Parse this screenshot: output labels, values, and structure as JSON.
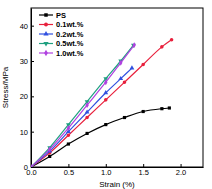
{
  "chart_data": {
    "type": "line",
    "x_label": "Strain (%)",
    "y_label": "Stress/MPa",
    "xlim": [
      0,
      2.3
    ],
    "xticks": [
      {
        "value": 0,
        "label": "0.0"
      },
      {
        "value": 0.5,
        "label": "0.5"
      },
      {
        "value": 1,
        "label": "1.0"
      },
      {
        "value": 1.5,
        "label": "1.5"
      },
      {
        "value": 2,
        "label": "2.0"
      }
    ],
    "ylim": [
      0,
      45
    ],
    "yticks": [
      0,
      10,
      20,
      30,
      40
    ],
    "legend": "top-left",
    "grid": false,
    "series": [
      {
        "name": "PS",
        "color": "#000000",
        "marker": "square",
        "x": [
          0,
          0.25,
          0.5,
          0.75,
          1.0,
          1.25,
          1.5,
          1.75,
          1.85
        ],
        "values": [
          0,
          3,
          6.5,
          9.5,
          12,
          14,
          15.7,
          16.5,
          16.7
        ]
      },
      {
        "name": "0.1wt.%",
        "color": "#e8203c",
        "marker": "circle",
        "x": [
          0,
          0.25,
          0.5,
          0.75,
          1.0,
          1.25,
          1.5,
          1.75,
          1.88
        ],
        "values": [
          0,
          4,
          9,
          14,
          19,
          24,
          29,
          34,
          36
        ]
      },
      {
        "name": "0.2wt.%",
        "color": "#3050e0",
        "marker": "triangle-up",
        "x": [
          0,
          0.25,
          0.5,
          0.75,
          1.0,
          1.2,
          1.35
        ],
        "values": [
          0,
          4.5,
          10,
          15.5,
          21,
          25,
          28
        ]
      },
      {
        "name": "0.5wt.%",
        "color": "#20a080",
        "marker": "triangle-down",
        "x": [
          0,
          0.25,
          0.5,
          0.75,
          1.0,
          1.2,
          1.37
        ],
        "values": [
          0,
          5.5,
          12,
          18.5,
          25,
          30,
          34.5
        ]
      },
      {
        "name": "1.0wt.%",
        "color": "#b040e0",
        "marker": "diamond",
        "x": [
          0,
          0.25,
          0.5,
          0.75,
          1.0,
          1.2,
          1.38
        ],
        "values": [
          0,
          5,
          11,
          17.5,
          24,
          29.5,
          34.5
        ]
      }
    ]
  }
}
